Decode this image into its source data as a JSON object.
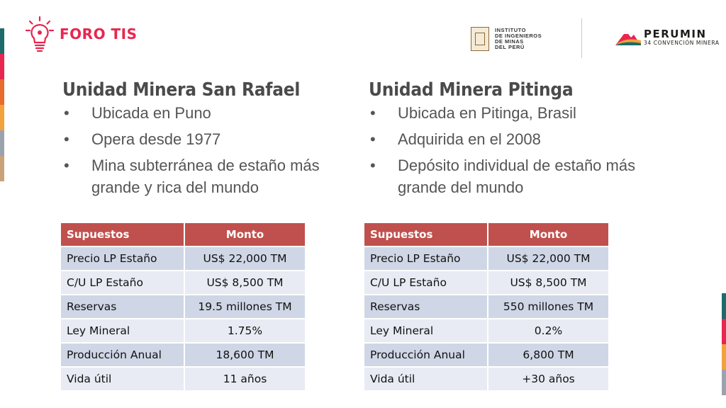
{
  "header": {
    "foro_logo_text": "FORO TIS",
    "iim_logo_lines": [
      "INSTITUTO",
      "DE INGENIEROS",
      "DE MINAS",
      "DEL PERÚ"
    ],
    "perumin_title": "PERUMIN",
    "perumin_subtitle": "34 CONVENCIÓN MINERA"
  },
  "colors": {
    "accent_red": "#e8264f",
    "table_header": "#c0504d",
    "row_dark": "#cfd6e6",
    "row_light": "#e8ebf3",
    "stripes": [
      "#1d6b6b",
      "#e8264f",
      "#e86b2c",
      "#f2a23a",
      "#9aa3ad",
      "#c9a27a"
    ]
  },
  "columns": [
    {
      "title": "Unidad Minera San Rafael",
      "bullets": [
        "Ubicada en Puno",
        "Opera desde 1977",
        "Mina subterránea de estaño más grande y rica del mundo"
      ],
      "table": {
        "headers": [
          "Supuestos",
          "Monto"
        ],
        "rows": [
          [
            "Precio LP Estaño",
            "US$ 22,000 TM"
          ],
          [
            "C/U LP Estaño",
            "US$ 8,500 TM"
          ],
          [
            "Reservas",
            "19.5 millones TM"
          ],
          [
            "Ley Mineral",
            "1.75%"
          ],
          [
            "Producción Anual",
            "18,600 TM"
          ],
          [
            "Vida útil",
            "11 años"
          ]
        ]
      }
    },
    {
      "title": "Unidad Minera Pitinga",
      "bullets": [
        "Ubicada en Pitinga, Brasil",
        "Adquirida en el 2008",
        "Depósito individual de estaño más grande del mundo"
      ],
      "table": {
        "headers": [
          "Supuestos",
          "Monto"
        ],
        "rows": [
          [
            "Precio LP Estaño",
            "US$ 22,000 TM"
          ],
          [
            "C/U LP Estaño",
            "US$ 8,500 TM"
          ],
          [
            "Reservas",
            "550 millones TM"
          ],
          [
            "Ley Mineral",
            "0.2%"
          ],
          [
            "Producción Anual",
            "6,800 TM"
          ],
          [
            "Vida útil",
            "+30 años"
          ]
        ]
      }
    }
  ]
}
